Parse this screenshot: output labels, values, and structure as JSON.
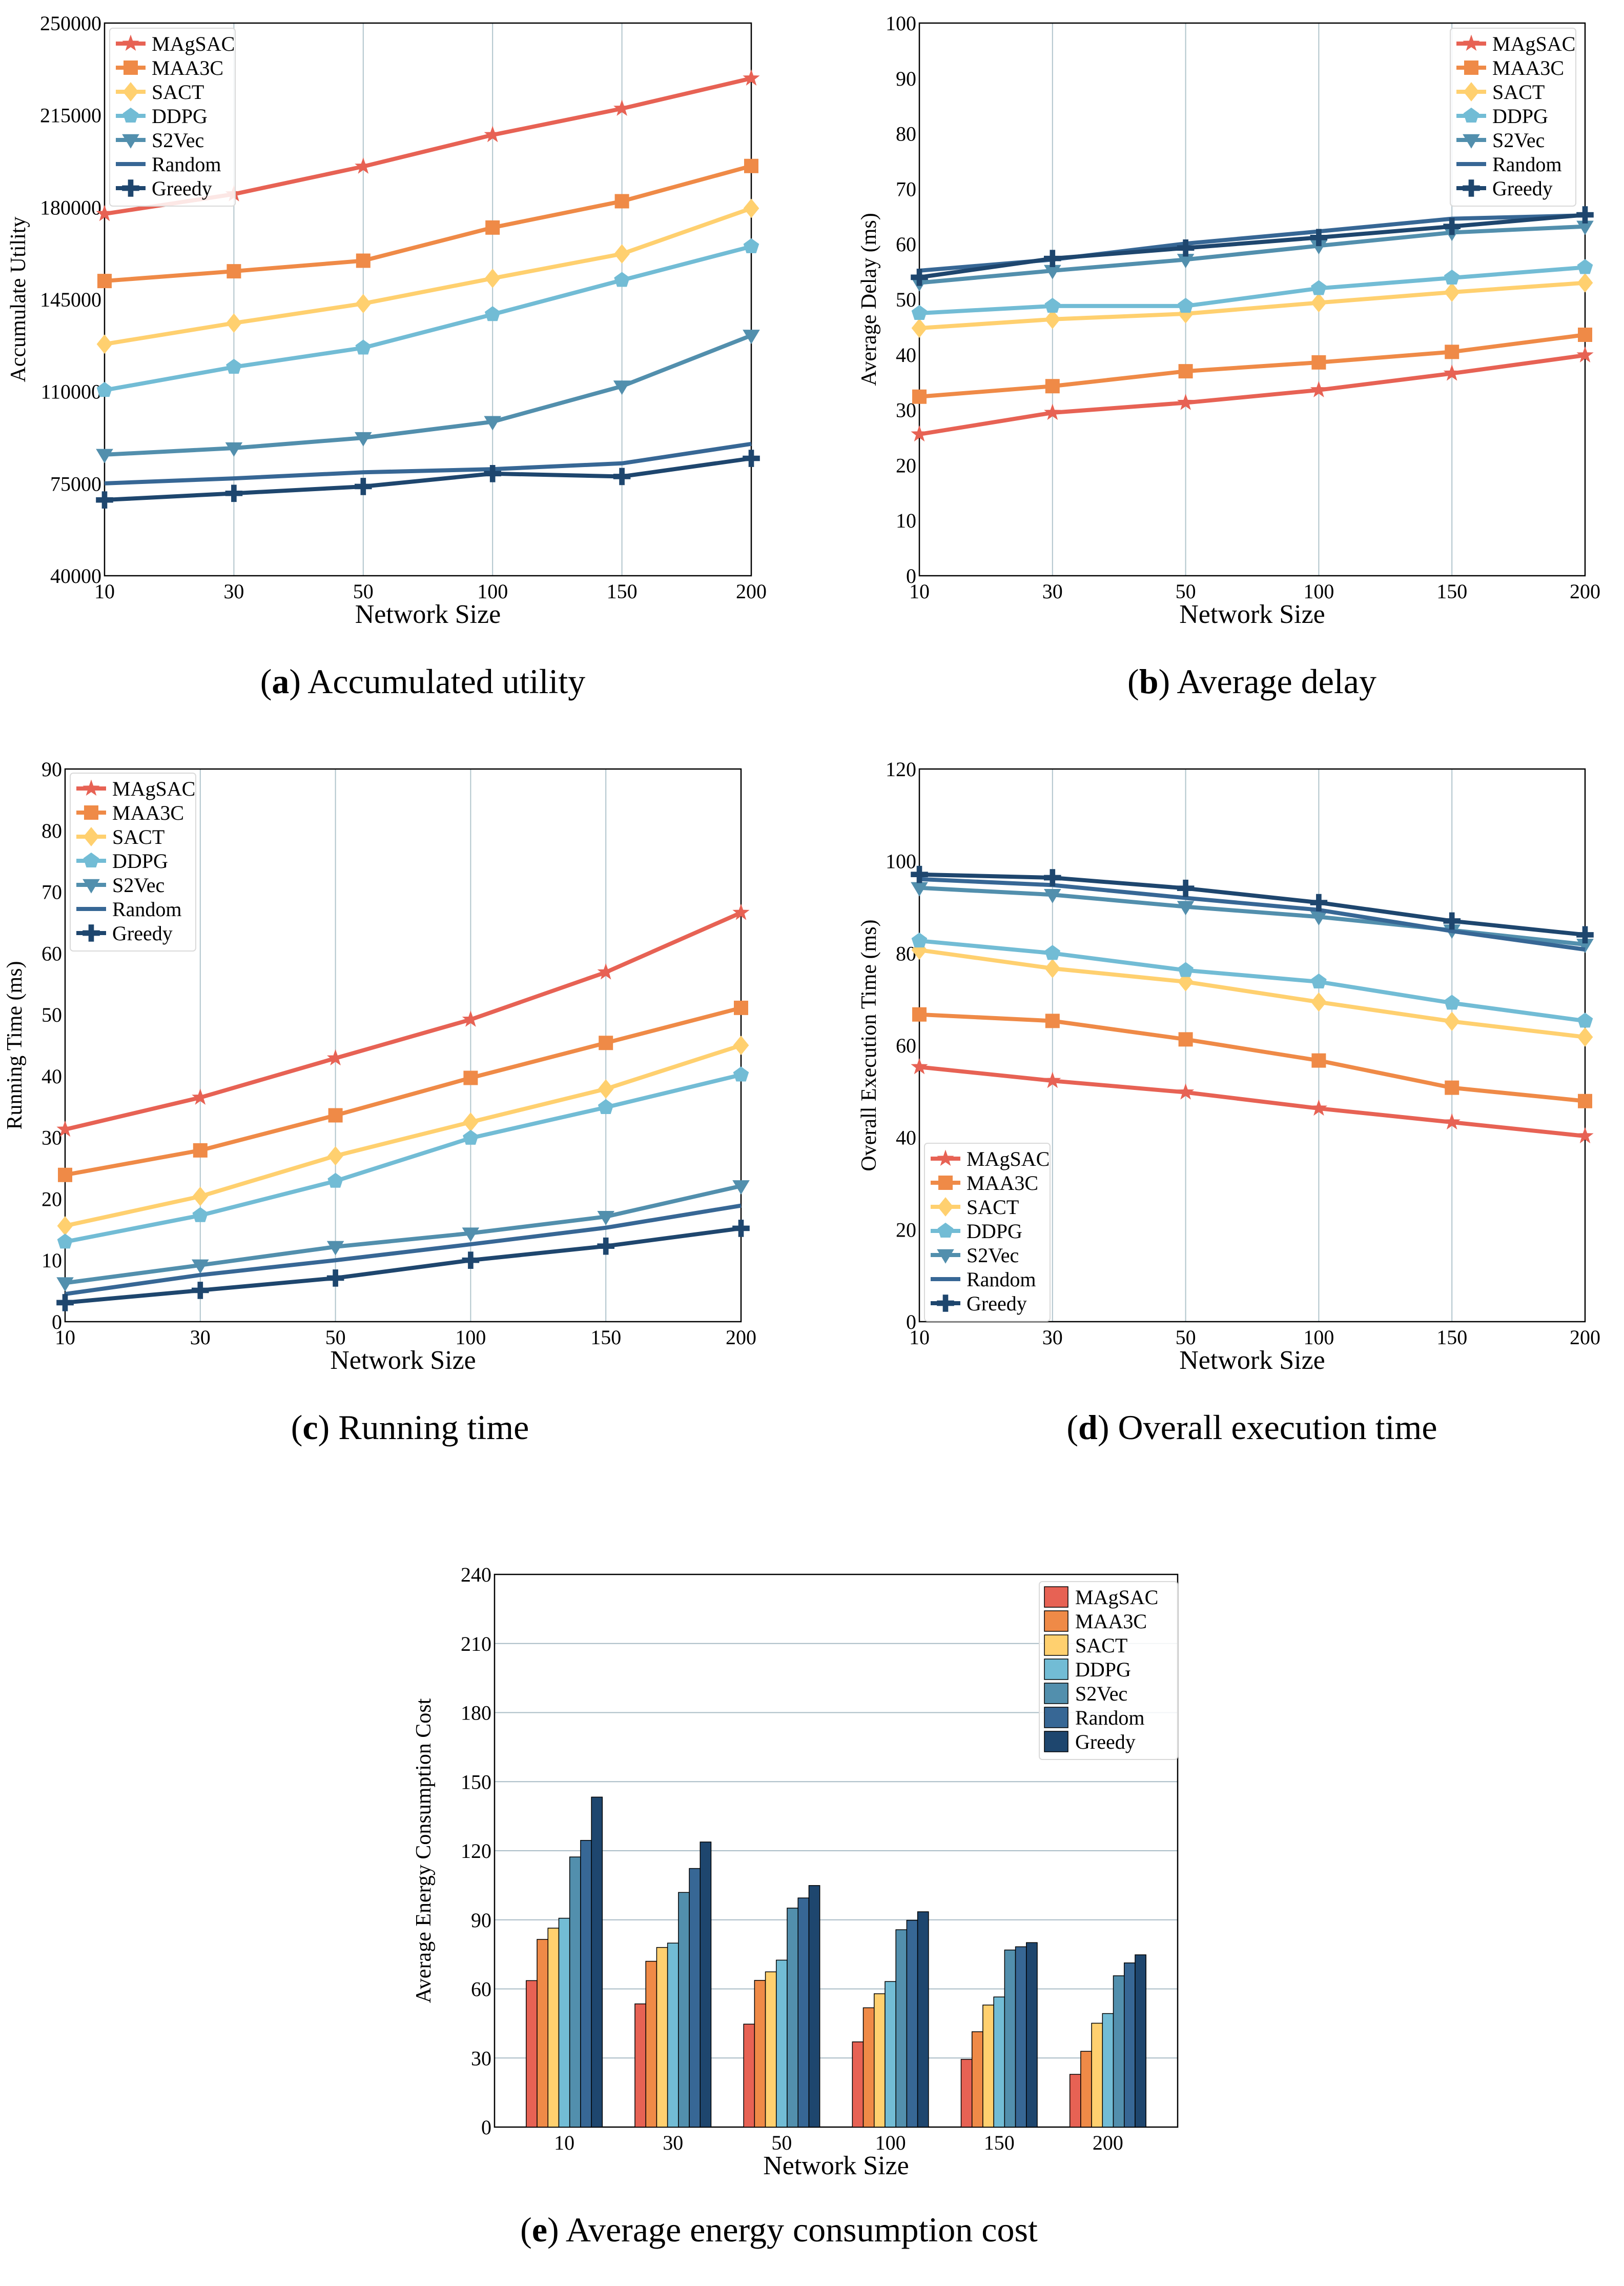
{
  "colors": {
    "MAgSAC": "#E76254",
    "MAA3C": "#EF8A47",
    "SACT": "#FFD06F",
    "DDPG": "#72BCD5",
    "S2Vec": "#528FAD",
    "Random": "#376795",
    "Greedy": "#1E466E"
  },
  "markers": {
    "MAgSAC": "star",
    "MAA3C": "square",
    "SACT": "diamond",
    "DDPG": "pentagon",
    "S2Vec": "triangle-down",
    "Random": "circle",
    "Greedy": "plus"
  },
  "captions": [
    {
      "letter": "a",
      "text": "Accumulated utility"
    },
    {
      "letter": "b",
      "text": "Average delay"
    },
    {
      "letter": "c",
      "text": "Running time"
    },
    {
      "letter": "d",
      "text": "Overall execution time"
    },
    {
      "letter": "e",
      "text": "Average energy consumption cost"
    }
  ],
  "chart_data": [
    {
      "id": "a",
      "type": "line",
      "title": "",
      "xlabel": "Network Size",
      "ylabel": "Accumulate Utility",
      "categories": [
        "10",
        "30",
        "50",
        "100",
        "150",
        "200"
      ],
      "ylim": [
        40000,
        250000
      ],
      "yticks": [
        40000,
        75000,
        110000,
        145000,
        180000,
        215000,
        250000
      ],
      "grid": "vertical",
      "legend": "top-left",
      "series": [
        {
          "name": "MAgSAC",
          "values": [
            177500,
            185000,
            195500,
            207500,
            217500,
            229000
          ]
        },
        {
          "name": "MAA3C",
          "values": [
            152000,
            155700,
            159700,
            172300,
            182300,
            195700
          ]
        },
        {
          "name": "SACT",
          "values": [
            128000,
            136000,
            143400,
            153000,
            162300,
            179600
          ]
        },
        {
          "name": "DDPG",
          "values": [
            110500,
            119300,
            126600,
            139300,
            152300,
            165100
          ]
        },
        {
          "name": "S2Vec",
          "values": [
            86000,
            88500,
            92400,
            98500,
            112000,
            131300
          ]
        },
        {
          "name": "Random",
          "values": [
            75100,
            77000,
            79300,
            80500,
            82700,
            90100
          ]
        },
        {
          "name": "Greedy",
          "values": [
            68800,
            71300,
            73900,
            78800,
            77700,
            84600
          ]
        }
      ]
    },
    {
      "id": "b",
      "type": "line",
      "title": "",
      "xlabel": "Network Size",
      "ylabel": "Average Delay (ms)",
      "categories": [
        "10",
        "30",
        "50",
        "100",
        "150",
        "200"
      ],
      "ylim": [
        0,
        100
      ],
      "yticks": [
        0,
        10,
        20,
        30,
        40,
        50,
        60,
        70,
        80,
        90,
        100
      ],
      "grid": "vertical",
      "legend": "top-right",
      "series": [
        {
          "name": "MAgSAC",
          "values": [
            25.6,
            29.5,
            31.3,
            33.6,
            36.6,
            39.9
          ]
        },
        {
          "name": "MAA3C",
          "values": [
            32.4,
            34.3,
            37.0,
            38.6,
            40.5,
            43.6
          ]
        },
        {
          "name": "SACT",
          "values": [
            44.8,
            46.4,
            47.4,
            49.4,
            51.3,
            53.0
          ]
        },
        {
          "name": "DDPG",
          "values": [
            47.5,
            48.8,
            48.8,
            52.0,
            53.9,
            55.8
          ]
        },
        {
          "name": "S2Vec",
          "values": [
            53.0,
            55.2,
            57.2,
            59.7,
            62.1,
            63.2
          ]
        },
        {
          "name": "Random",
          "values": [
            55.2,
            57.2,
            60.1,
            62.3,
            64.6,
            65.2
          ]
        },
        {
          "name": "Greedy",
          "values": [
            54.0,
            57.4,
            59.3,
            61.2,
            63.2,
            65.3
          ]
        }
      ]
    },
    {
      "id": "c",
      "type": "line",
      "title": "",
      "xlabel": "Network Size",
      "ylabel": "Running Time (ms)",
      "categories": [
        "10",
        "30",
        "50",
        "100",
        "150",
        "200"
      ],
      "ylim": [
        0,
        90
      ],
      "yticks": [
        0,
        10,
        20,
        30,
        40,
        50,
        60,
        70,
        80,
        90
      ],
      "grid": "vertical",
      "legend": "top-left",
      "series": [
        {
          "name": "MAgSAC",
          "values": [
            31.3,
            36.5,
            42.9,
            49.2,
            56.9,
            66.6
          ]
        },
        {
          "name": "MAA3C",
          "values": [
            23.9,
            27.9,
            33.6,
            39.7,
            45.4,
            51.1
          ]
        },
        {
          "name": "SACT",
          "values": [
            15.6,
            20.4,
            27.0,
            32.5,
            37.9,
            45.0
          ]
        },
        {
          "name": "DDPG",
          "values": [
            13.0,
            17.3,
            22.9,
            29.9,
            34.9,
            40.2
          ]
        },
        {
          "name": "S2Vec",
          "values": [
            6.3,
            9.2,
            12.2,
            14.4,
            17.1,
            22.1
          ]
        },
        {
          "name": "Random",
          "values": [
            4.5,
            7.6,
            10.0,
            12.6,
            15.3,
            18.9
          ]
        },
        {
          "name": "Greedy",
          "values": [
            3.1,
            5.1,
            7.1,
            10.0,
            12.3,
            15.2
          ]
        }
      ]
    },
    {
      "id": "d",
      "type": "line",
      "title": "",
      "xlabel": "Network Size",
      "ylabel": "Overall Execution Time (ms)",
      "categories": [
        "10",
        "30",
        "50",
        "100",
        "150",
        "200"
      ],
      "ylim": [
        0,
        120
      ],
      "yticks": [
        0,
        20,
        40,
        60,
        80,
        100,
        120
      ],
      "grid": "vertical",
      "legend": "bottom-left",
      "series": [
        {
          "name": "MAgSAC",
          "values": [
            55.3,
            52.3,
            49.8,
            46.3,
            43.3,
            40.3
          ]
        },
        {
          "name": "MAA3C",
          "values": [
            66.7,
            65.3,
            61.3,
            56.7,
            50.8,
            47.9
          ]
        },
        {
          "name": "SACT",
          "values": [
            80.7,
            76.7,
            73.8,
            69.4,
            65.2,
            61.8
          ]
        },
        {
          "name": "DDPG",
          "values": [
            82.7,
            80.0,
            76.3,
            73.8,
            69.2,
            65.3
          ]
        },
        {
          "name": "S2Vec",
          "values": [
            94.2,
            92.7,
            90.1,
            87.9,
            85.0,
            81.9
          ]
        },
        {
          "name": "Random",
          "values": [
            96.1,
            94.8,
            92.0,
            89.4,
            84.8,
            80.8
          ]
        },
        {
          "name": "Greedy",
          "values": [
            97.1,
            96.4,
            94.1,
            91.0,
            87.0,
            84.0
          ]
        }
      ]
    },
    {
      "id": "e",
      "type": "bar",
      "title": "",
      "xlabel": "Network Size",
      "ylabel": "Average Energy Consumption Cost",
      "categories": [
        "10",
        "30",
        "50",
        "100",
        "150",
        "200"
      ],
      "ylim": [
        0,
        240
      ],
      "yticks": [
        0,
        30,
        60,
        90,
        120,
        150,
        180,
        210,
        240
      ],
      "grid": "horizontal",
      "legend": "top-right",
      "series": [
        {
          "name": "MAgSAC",
          "values": [
            63.6,
            53.5,
            44.7,
            37.0,
            29.4,
            22.9
          ]
        },
        {
          "name": "MAA3C",
          "values": [
            81.5,
            72.0,
            63.7,
            51.8,
            41.4,
            32.9
          ]
        },
        {
          "name": "SACT",
          "values": [
            86.4,
            78.0,
            67.4,
            57.9,
            53.0,
            45.1
          ]
        },
        {
          "name": "DDPG",
          "values": [
            90.7,
            79.9,
            72.5,
            63.2,
            56.5,
            49.3
          ]
        },
        {
          "name": "S2Vec",
          "values": [
            117.3,
            101.9,
            95.1,
            85.7,
            76.9,
            65.7
          ]
        },
        {
          "name": "Random",
          "values": [
            124.5,
            112.3,
            99.5,
            89.8,
            78.3,
            71.3
          ]
        },
        {
          "name": "Greedy",
          "values": [
            143.3,
            123.8,
            104.9,
            93.5,
            80.1,
            74.8
          ]
        }
      ]
    }
  ]
}
